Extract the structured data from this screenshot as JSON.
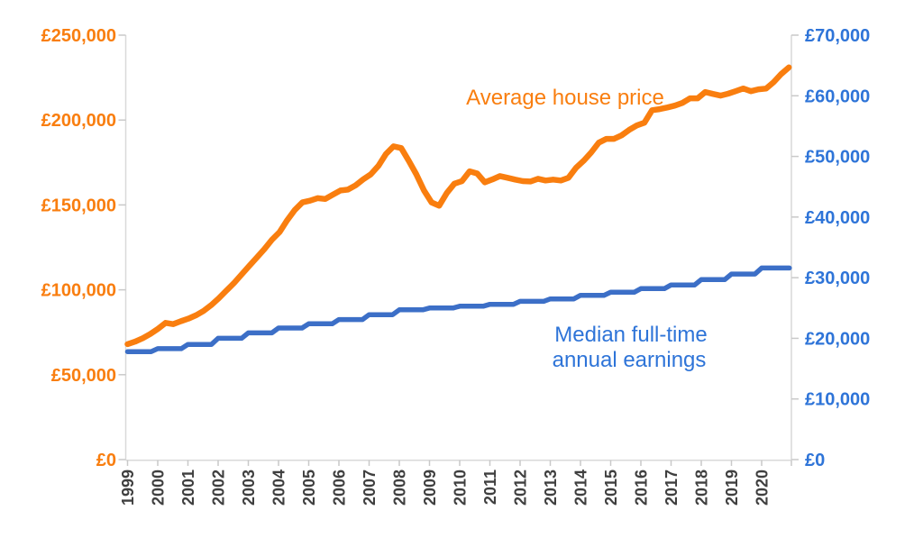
{
  "chart_data": {
    "type": "line",
    "title": "",
    "legend_position": "inline-annotations",
    "grid": false,
    "x_axis": {
      "labels": [
        "1999",
        "2000",
        "2001",
        "2002",
        "2003",
        "2004",
        "2005",
        "2006",
        "2007",
        "2008",
        "2009",
        "2010",
        "2011",
        "2012",
        "2013",
        "2014",
        "2015",
        "2016",
        "2017",
        "2018",
        "2019",
        "2020"
      ],
      "label_color": "#3F3F3F",
      "label_rotation_deg": -90
    },
    "left_axis": {
      "min": 0,
      "max": 250000,
      "tick_values": [
        0,
        50000,
        100000,
        150000,
        200000,
        250000
      ],
      "tick_labels": [
        "£0",
        "£50,000",
        "£100,000",
        "£150,000",
        "£200,000",
        "£250,000"
      ],
      "label_color": "#F97E0F"
    },
    "right_axis": {
      "min": 0,
      "max": 70000,
      "tick_values": [
        0,
        10000,
        20000,
        30000,
        40000,
        50000,
        60000,
        70000
      ],
      "tick_labels": [
        "£0",
        "£10,000",
        "£20,000",
        "£30,000",
        "£40,000",
        "£50,000",
        "£60,000",
        "£70,000"
      ],
      "label_color": "#2E74D8"
    },
    "axis_line_color": "#D9D9D9",
    "tick_mark_color": "#C9C9C9",
    "series": [
      {
        "name": "Average house price",
        "axis": "left",
        "color": "#F97E0F",
        "x_start": 1999,
        "x_end": 2020.9,
        "frequency": "quarterly",
        "values": [
          68000,
          69500,
          71500,
          74000,
          77000,
          80500,
          79800,
          81500,
          83000,
          85000,
          87500,
          91000,
          95000,
          99500,
          104000,
          109000,
          114000,
          119000,
          124000,
          129500,
          134000,
          141000,
          147000,
          151500,
          152500,
          154000,
          153500,
          156000,
          158500,
          159000,
          161500,
          165000,
          168000,
          173000,
          180000,
          184500,
          183500,
          176000,
          168000,
          158500,
          151500,
          149500,
          157000,
          162500,
          164000,
          169800,
          168500,
          163300,
          165000,
          167000,
          166000,
          164900,
          164000,
          163800,
          165400,
          164400,
          164900,
          164400,
          166000,
          171800,
          176000,
          180900,
          186700,
          188900,
          188900,
          191000,
          194200,
          196800,
          198400,
          205800,
          206400,
          207400,
          208500,
          210100,
          212800,
          212800,
          216500,
          215400,
          214400,
          215500,
          217000,
          218600,
          217000,
          218100,
          218500,
          222300,
          227100,
          231000
        ]
      },
      {
        "name": "Median full-time annual earnings",
        "axis": "right",
        "color": "#3C6FC7",
        "x_start": 1999,
        "frequency": "annual-steps",
        "years": [
          1999,
          2000,
          2001,
          2002,
          2003,
          2004,
          2005,
          2006,
          2007,
          2008,
          2009,
          2010,
          2011,
          2012,
          2013,
          2014,
          2015,
          2016,
          2017,
          2018,
          2019,
          2020
        ],
        "values": [
          17800,
          18300,
          19000,
          20000,
          20900,
          21700,
          22400,
          23100,
          23900,
          24700,
          25000,
          25300,
          25600,
          26100,
          26500,
          27100,
          27600,
          28200,
          28800,
          29700,
          30600,
          31600
        ]
      }
    ],
    "annotations": {
      "house_label": "Average house price",
      "earnings_label_line1": "Median full-time",
      "earnings_label_line2": "annual earnings"
    }
  }
}
